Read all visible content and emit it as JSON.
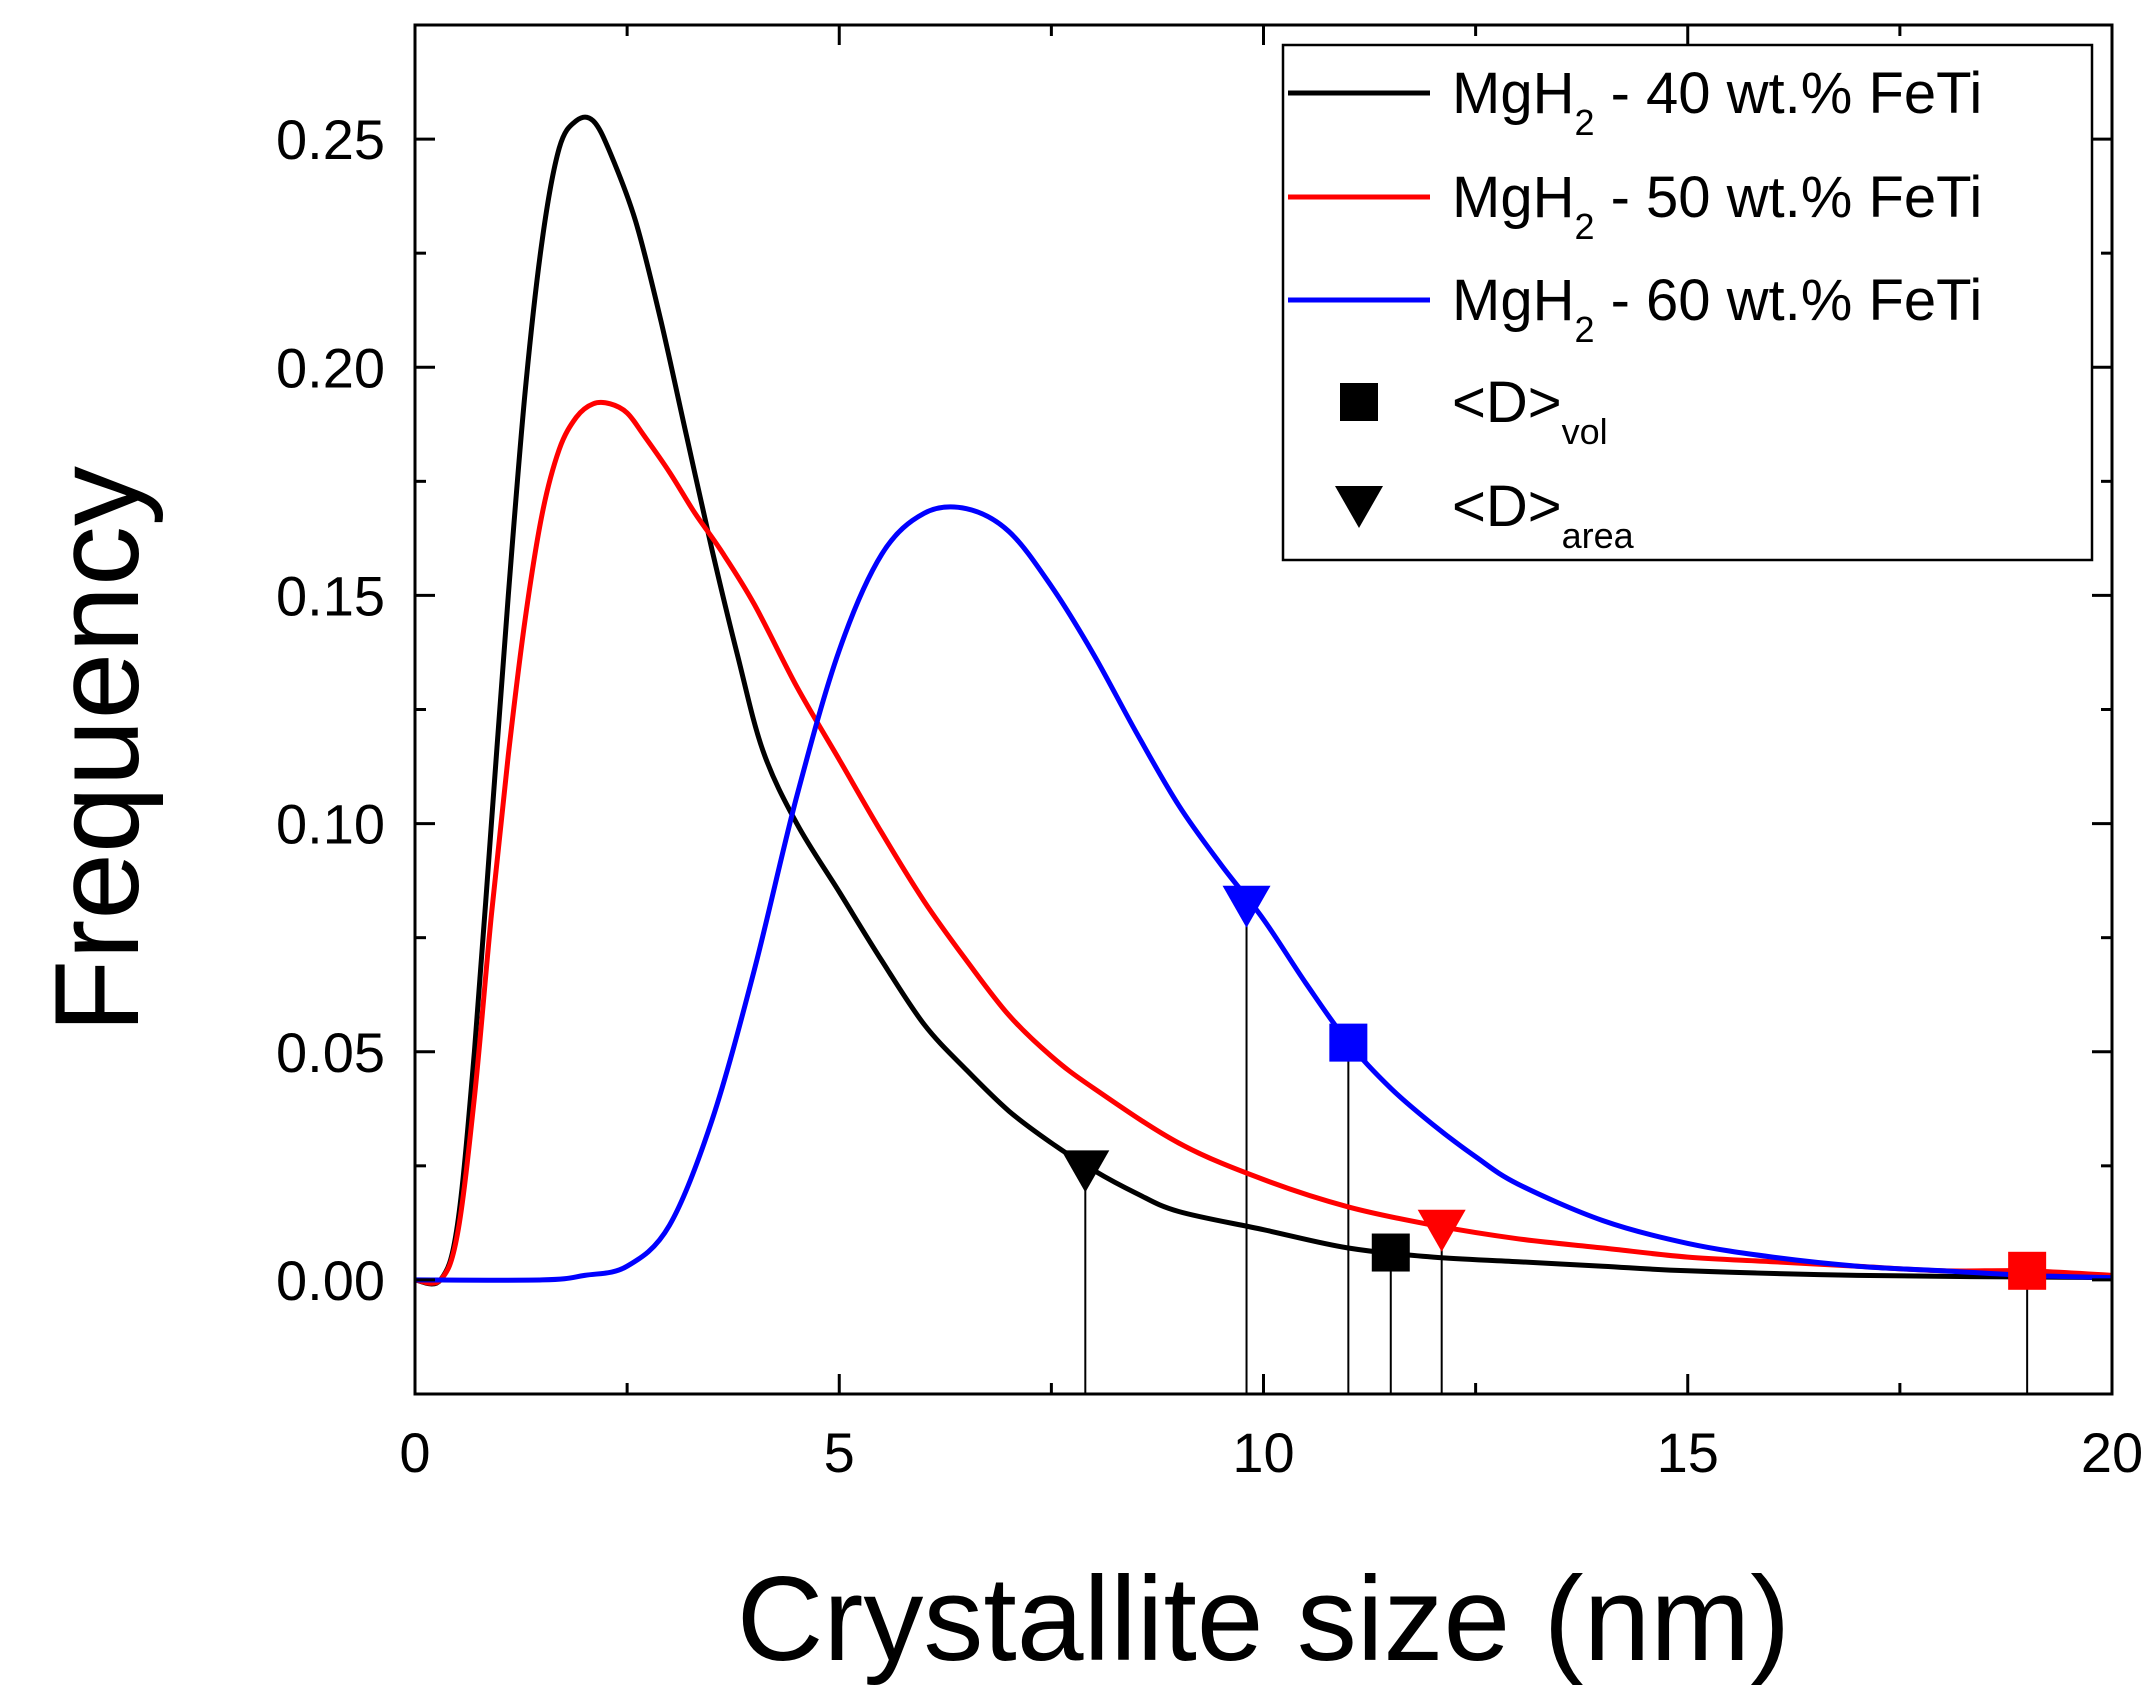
{
  "chart_data": {
    "type": "line",
    "xlabel": "Crystallite size (nm)",
    "ylabel": "Frequency",
    "xlim": [
      0,
      20
    ],
    "ylim": [
      -0.025,
      0.275
    ],
    "x_ticks": [
      0,
      5,
      10,
      15,
      20
    ],
    "x_tick_labels": [
      "0",
      "5",
      "10",
      "15",
      "20"
    ],
    "y_ticks": [
      0,
      0.05,
      0.1,
      0.15,
      0.2,
      0.25
    ],
    "y_tick_labels": [
      "0.00",
      "0.05",
      "0.10",
      "0.15",
      "0.20",
      "0.25"
    ],
    "grid": false,
    "legend_position": "top-right",
    "series": [
      {
        "name_main": "MgH",
        "name_sub": "2",
        "name_rest": " - 40 wt.% FeTi",
        "color": "#000000",
        "x": [
          0.0,
          0.3,
          0.5,
          0.7,
          0.9,
          1.1,
          1.3,
          1.5,
          1.7,
          1.9,
          2.1,
          2.3,
          2.6,
          2.9,
          3.2,
          3.5,
          3.8,
          4.1,
          4.5,
          5.0,
          5.5,
          6.0,
          6.5,
          7.0,
          7.5,
          8.0,
          8.5,
          9.0,
          10.0,
          11.0,
          12.0,
          13.0,
          14.0,
          15.0,
          17.0,
          20.0
        ],
        "values": [
          0.0,
          0.0,
          0.012,
          0.05,
          0.1,
          0.15,
          0.195,
          0.228,
          0.248,
          0.254,
          0.254,
          0.247,
          0.232,
          0.21,
          0.185,
          0.16,
          0.137,
          0.116,
          0.1,
          0.085,
          0.07,
          0.056,
          0.046,
          0.037,
          0.03,
          0.024,
          0.019,
          0.015,
          0.011,
          0.007,
          0.005,
          0.004,
          0.003,
          0.002,
          0.001,
          0.0005
        ],
        "vol_marker": {
          "x": 11.5,
          "y": 0.006
        },
        "area_marker": {
          "x": 7.9,
          "y": 0.024
        }
      },
      {
        "name_main": "MgH",
        "name_sub": "2",
        "name_rest": " - 50 wt.% FeTi",
        "color": "#ff0000",
        "x": [
          0.0,
          0.3,
          0.5,
          0.7,
          0.9,
          1.1,
          1.3,
          1.5,
          1.7,
          1.9,
          2.1,
          2.3,
          2.5,
          2.7,
          3.0,
          3.3,
          3.6,
          4.0,
          4.5,
          5.0,
          5.5,
          6.0,
          6.5,
          7.0,
          7.5,
          8.0,
          9.0,
          10.0,
          11.0,
          12.0,
          13.0,
          14.0,
          15.0,
          16.0,
          17.0,
          18.0,
          19.0,
          20.0
        ],
        "values": [
          0.0,
          0.0,
          0.01,
          0.04,
          0.08,
          0.115,
          0.145,
          0.168,
          0.182,
          0.189,
          0.192,
          0.192,
          0.19,
          0.185,
          0.177,
          0.168,
          0.16,
          0.148,
          0.13,
          0.114,
          0.098,
          0.083,
          0.07,
          0.058,
          0.049,
          0.042,
          0.03,
          0.022,
          0.016,
          0.012,
          0.009,
          0.007,
          0.005,
          0.004,
          0.003,
          0.002,
          0.002,
          0.001
        ],
        "vol_marker": {
          "x": 19.0,
          "y": 0.002
        },
        "area_marker": {
          "x": 12.1,
          "y": 0.011
        }
      },
      {
        "name_main": "MgH",
        "name_sub": "2",
        "name_rest": " - 60 wt.% FeTi",
        "color": "#0000ff",
        "x": [
          0.0,
          1.5,
          2.0,
          2.5,
          3.0,
          3.5,
          4.0,
          4.5,
          5.0,
          5.5,
          6.0,
          6.5,
          7.0,
          7.5,
          8.0,
          8.5,
          9.0,
          9.5,
          10.0,
          10.5,
          11.0,
          11.5,
          12.0,
          12.5,
          13.0,
          14.0,
          15.0,
          16.0,
          17.0,
          18.0,
          19.0,
          20.0
        ],
        "values": [
          0.0,
          0.0,
          0.001,
          0.003,
          0.012,
          0.035,
          0.068,
          0.106,
          0.138,
          0.159,
          0.168,
          0.169,
          0.164,
          0.152,
          0.137,
          0.12,
          0.104,
          0.091,
          0.079,
          0.065,
          0.052,
          0.042,
          0.034,
          0.027,
          0.021,
          0.013,
          0.008,
          0.005,
          0.003,
          0.002,
          0.001,
          0.0005
        ],
        "vol_marker": {
          "x": 11.0,
          "y": 0.052
        },
        "area_marker": {
          "x": 9.8,
          "y": 0.082
        }
      }
    ],
    "marker_legend": [
      {
        "symbol": "square",
        "label_main": "<D>",
        "label_sub": "vol"
      },
      {
        "symbol": "triangle-down",
        "label_main": "<D>",
        "label_sub": "area"
      }
    ]
  }
}
